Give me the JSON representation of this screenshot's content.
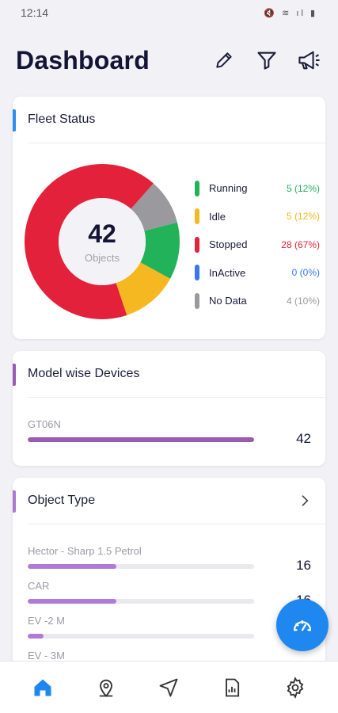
{
  "status_bar": {
    "time": "12:14",
    "icons": "🔇 ≋ ıl ▮"
  },
  "header": {
    "title": "Dashboard"
  },
  "fleet_status": {
    "title": "Fleet Status",
    "total": "42",
    "total_label": "Objects",
    "items": [
      {
        "label": "Running",
        "value": "5 (12%)",
        "color": "#22b35a",
        "count": 5
      },
      {
        "label": "Idle",
        "value": "5 (12%)",
        "color": "#f6b820",
        "count": 5
      },
      {
        "label": "Stopped",
        "value": "28 (67%)",
        "color": "#e3213a",
        "count": 28
      },
      {
        "label": "InActive",
        "value": "0 (0%)",
        "color": "#3578f0",
        "count": 0
      },
      {
        "label": "No Data",
        "value": "4 (10%)",
        "color": "#9a9a9e",
        "count": 4
      }
    ]
  },
  "model_devices": {
    "title": "Model wise Devices",
    "accent": "#9a5ab0",
    "rows": [
      {
        "label": "GT06N",
        "value": "42",
        "fraction": 1.0,
        "color": "#9a5ab0"
      }
    ]
  },
  "object_type": {
    "title": "Object Type",
    "accent": "#a87ad0",
    "rows": [
      {
        "label": "Hector - Sharp 1.5 Petrol",
        "value": "16",
        "fraction": 0.39,
        "color": "#b07ad6"
      },
      {
        "label": "CAR",
        "value": "16",
        "fraction": 0.39,
        "color": "#b07ad6"
      },
      {
        "label": "EV -2 M",
        "value": "",
        "fraction": 0.07,
        "color": "#b07ad6"
      },
      {
        "label": "EV - 3M",
        "value": "",
        "fraction": 0.0,
        "color": "#b07ad6"
      }
    ]
  },
  "colors": {
    "primary": "#1e88f0",
    "fleet_accent": "#2f8df0"
  },
  "bottom_nav": [
    {
      "name": "home-icon",
      "active": true
    },
    {
      "name": "location-pin-icon",
      "active": false
    },
    {
      "name": "navigation-arrow-icon",
      "active": false
    },
    {
      "name": "report-icon",
      "active": false
    },
    {
      "name": "settings-gear-icon",
      "active": false
    }
  ]
}
